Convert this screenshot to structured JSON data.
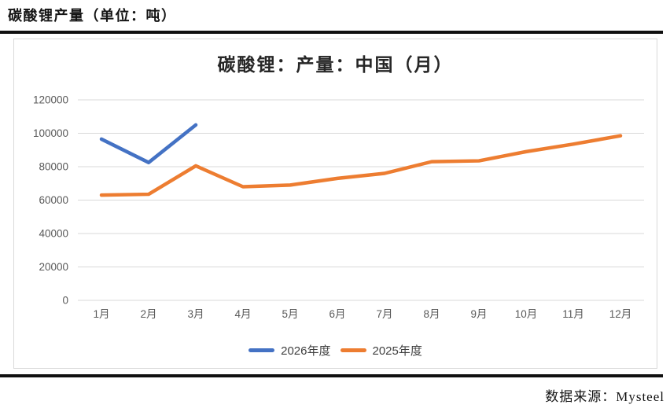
{
  "page": {
    "title": "碳酸锂产量（单位：吨）"
  },
  "chart_data": {
    "type": "line",
    "title": "碳酸锂：产量：中国（月）",
    "categories": [
      "1月",
      "2月",
      "3月",
      "4月",
      "5月",
      "6月",
      "7月",
      "8月",
      "9月",
      "10月",
      "11月",
      "12月"
    ],
    "series": [
      {
        "name": "2026年度",
        "color": "#4472C4",
        "values": [
          96500,
          82500,
          105000
        ]
      },
      {
        "name": "2025年度",
        "color": "#ED7D31",
        "values": [
          63000,
          63500,
          80500,
          68000,
          69000,
          73000,
          76000,
          83000,
          83500,
          89000,
          93500,
          98500
        ]
      }
    ],
    "xlabel": "",
    "ylabel": "",
    "ylim": [
      0,
      120000
    ],
    "ytick_step": 20000,
    "grid": "horizontal",
    "legend_position": "bottom",
    "grid_color": "#d9d9d9",
    "tick_text_color": "#595959"
  },
  "footer": {
    "source": "数据来源：Mysteel"
  }
}
